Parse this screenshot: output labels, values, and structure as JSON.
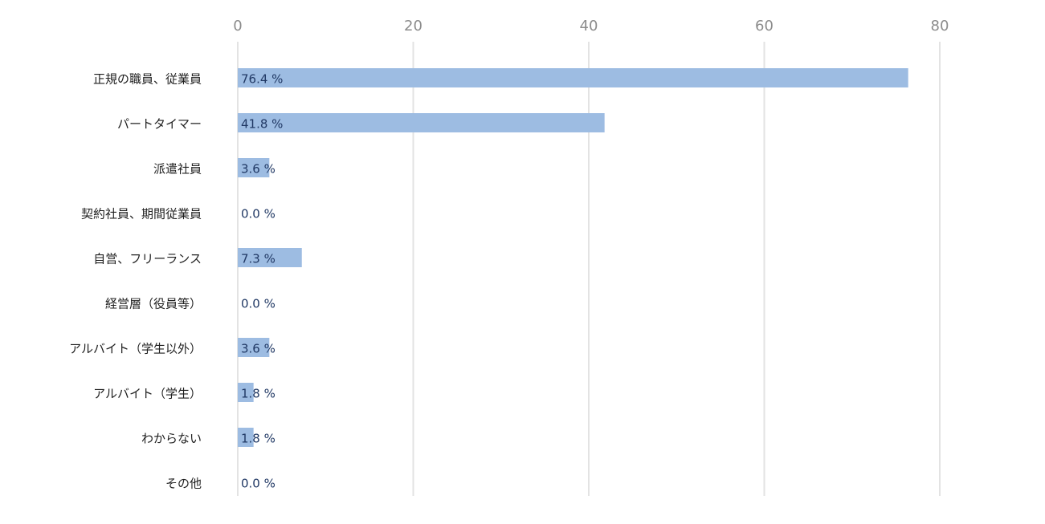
{
  "chart_data": {
    "type": "bar",
    "orientation": "horizontal",
    "categories": [
      "正規の職員、従業員",
      "パートタイマー",
      "派遣社員",
      "契約社員、期間従業員",
      "自営、フリーランス",
      "経営層（役員等）",
      "アルバイト（学生以外）",
      "アルバイト（学生）",
      "わからない",
      "その他"
    ],
    "values": [
      76.4,
      41.8,
      3.6,
      0.0,
      7.3,
      0.0,
      3.6,
      1.8,
      1.8,
      0.0
    ],
    "data_labels": [
      "76.4 %",
      "41.8 %",
      "3.6 %",
      "0.0 %",
      "7.3 %",
      "0.0 %",
      "3.6 %",
      "1.8 %",
      "1.8 %",
      "0.0 %"
    ],
    "x_ticks": [
      0,
      20,
      40,
      60,
      80
    ],
    "xlim": [
      0,
      80
    ],
    "x_axis_position": "top",
    "grid": true,
    "legend": "none",
    "title": "",
    "xlabel": "",
    "ylabel": "",
    "colors": {
      "bar": "#9dbce2",
      "grid": "#e3e3e3",
      "tick_text": "#8c8c8c",
      "category_text": "#1f1f1f",
      "data_label_text": "#203864"
    }
  }
}
